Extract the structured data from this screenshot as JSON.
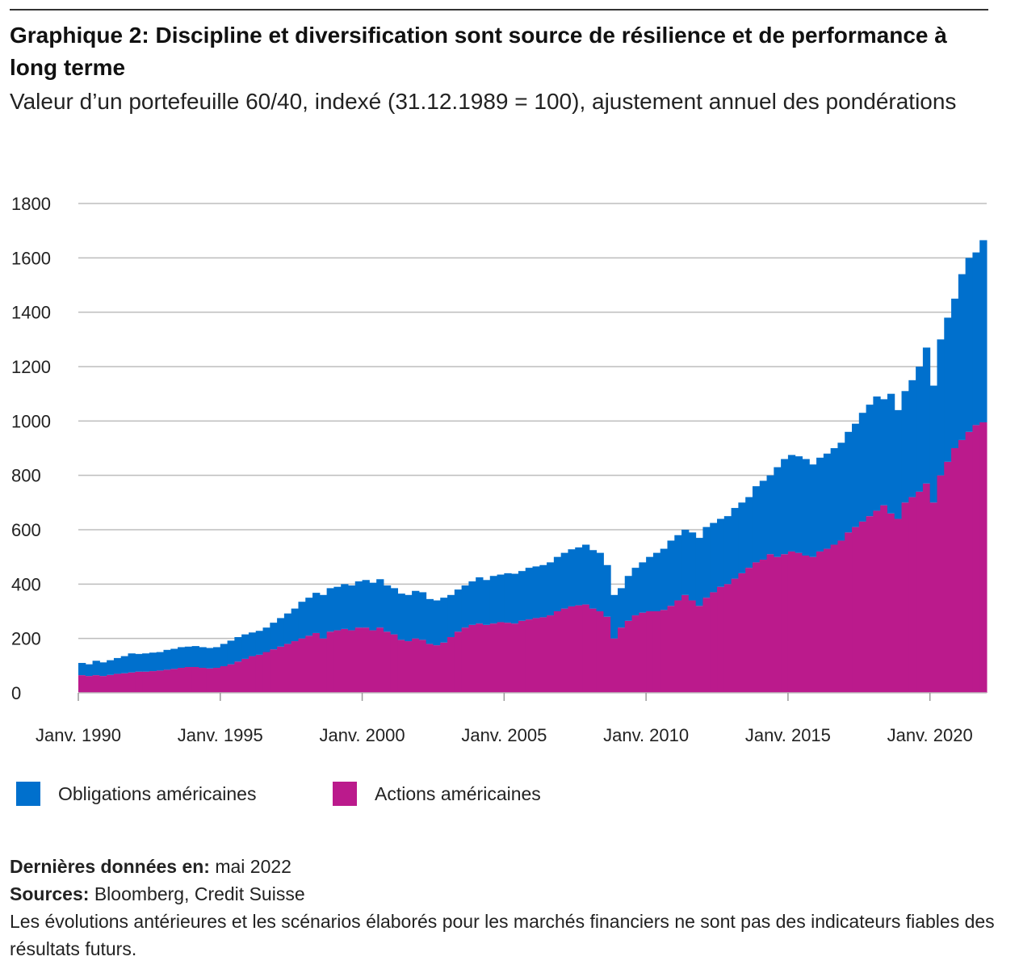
{
  "title": "Graphique 2: Discipline et diversification sont source de résilience et de performance à long terme",
  "subtitle": "Valeur d’un portefeuille 60/40, indexé (31.12.1989 = 100), ajustement annuel des pondérations",
  "colors": {
    "bonds": "#0070CD",
    "stocks": "#BB1A8C",
    "grid": "#BDBDBD"
  },
  "chart_data": {
    "type": "area",
    "stacked": true,
    "frequency": "quarterly",
    "start": "1990-Q1",
    "ylim": [
      0,
      1800
    ],
    "yticks": [
      "0",
      "200",
      "400",
      "600",
      "800",
      "1000",
      "1200",
      "1400",
      "1600",
      "1800"
    ],
    "xticks": [
      "Janv. 1990",
      "Janv. 1995",
      "Janv. 2000",
      "Janv. 2005",
      "Janv. 2010",
      "Janv. 2015",
      "Janv. 2020"
    ],
    "xtick_years": [
      1990,
      1995,
      2000,
      2005,
      2010,
      2015,
      2020
    ],
    "grid": true,
    "legend_position": "bottom-left",
    "total": [
      110,
      105,
      118,
      112,
      120,
      128,
      135,
      145,
      143,
      145,
      148,
      150,
      158,
      162,
      168,
      170,
      172,
      168,
      165,
      168,
      180,
      192,
      205,
      215,
      222,
      228,
      240,
      258,
      275,
      292,
      310,
      335,
      350,
      368,
      360,
      385,
      390,
      400,
      395,
      410,
      415,
      405,
      418,
      395,
      385,
      365,
      360,
      375,
      370,
      345,
      340,
      350,
      360,
      380,
      395,
      410,
      425,
      415,
      430,
      435,
      440,
      438,
      448,
      460,
      465,
      470,
      480,
      500,
      515,
      528,
      535,
      545,
      525,
      515,
      470,
      360,
      385,
      430,
      460,
      480,
      500,
      515,
      530,
      560,
      580,
      600,
      590,
      570,
      610,
      625,
      640,
      650,
      680,
      700,
      720,
      760,
      780,
      800,
      830,
      860,
      875,
      870,
      860,
      840,
      865,
      880,
      900,
      920,
      960,
      990,
      1030,
      1060,
      1090,
      1080,
      1100,
      1040,
      1110,
      1150,
      1200,
      1270,
      1130,
      1300,
      1380,
      1450,
      1540,
      1600,
      1620,
      1665
    ],
    "series": [
      {
        "name": "Actions américaines",
        "values": [
          65,
          62,
          65,
          62,
          66,
          70,
          72,
          75,
          78,
          78,
          80,
          82,
          85,
          88,
          92,
          95,
          95,
          92,
          90,
          92,
          98,
          105,
          115,
          125,
          135,
          140,
          150,
          160,
          170,
          180,
          190,
          200,
          210,
          220,
          200,
          225,
          230,
          235,
          230,
          240,
          240,
          230,
          240,
          225,
          215,
          195,
          190,
          200,
          195,
          180,
          175,
          185,
          205,
          225,
          240,
          250,
          255,
          250,
          255,
          260,
          258,
          255,
          265,
          270,
          275,
          278,
          285,
          300,
          310,
          318,
          322,
          325,
          310,
          300,
          280,
          200,
          240,
          265,
          285,
          295,
          300,
          300,
          305,
          320,
          340,
          360,
          340,
          320,
          350,
          370,
          390,
          400,
          420,
          440,
          460,
          480,
          490,
          510,
          500,
          510,
          520,
          515,
          505,
          500,
          520,
          530,
          545,
          560,
          590,
          610,
          630,
          650,
          670,
          690,
          660,
          640,
          700,
          720,
          740,
          770,
          700,
          800,
          850,
          900,
          930,
          960,
          985,
          995
        ]
      },
      {
        "name": "Obligations américaines",
        "note": "stacked on top; top edge = total"
      }
    ]
  },
  "legend": [
    {
      "label": "Obligations américaines",
      "color": "#0070CD"
    },
    {
      "label": "Actions américaines",
      "color": "#BB1A8C"
    }
  ],
  "footer": {
    "last_data_label": "Dernières données en:",
    "last_data_value": "mai 2022",
    "sources_label": "Sources:",
    "sources_value": "Bloomberg, Credit Suisse",
    "disclaimer": "Les évolutions antérieures et les scénarios élaborés pour les marchés financiers ne sont pas des indicateurs fiables des résultats futurs."
  }
}
